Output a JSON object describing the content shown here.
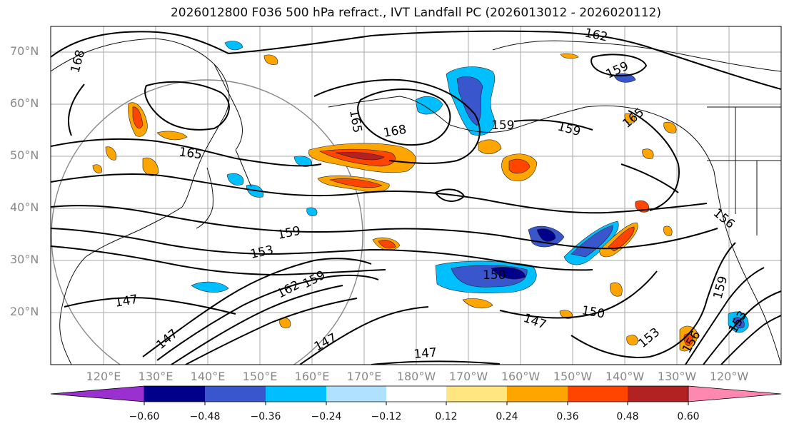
{
  "title": "2026012800 F036 500 hPa refract., IVT Landfall PC (2026013012 - 2026020112)",
  "lat_labels": [
    "70°N",
    "60°N",
    "50°N",
    "40°N",
    "30°N",
    "20°N"
  ],
  "lon_labels": [
    "120°E",
    "130°E",
    "140°E",
    "150°E",
    "160°E",
    "170°E",
    "180°W",
    "170°W",
    "160°W",
    "150°W",
    "140°W",
    "130°W",
    "120°W"
  ],
  "contour_labels": [
    "162",
    "168",
    "159",
    "165",
    "168",
    "159",
    "159",
    "165",
    "165",
    "156",
    "159",
    "153",
    "150",
    "147",
    "147",
    "147",
    "147",
    "162",
    "159",
    "153",
    "150",
    "159",
    "156",
    "153",
    "147"
  ],
  "colorbar": {
    "ticks": [
      "−0.60",
      "−0.48",
      "−0.36",
      "−0.24",
      "−0.12",
      "0.12",
      "0.24",
      "0.36",
      "0.48",
      "0.60"
    ],
    "colors": [
      "#9b30d0",
      "#00008b",
      "#3a56cc",
      "#00bfff",
      "#b0e2ff",
      "#ffffff",
      "#ffe680",
      "#ffa500",
      "#ff4500",
      "#b22222",
      "#ff88b0"
    ]
  }
}
